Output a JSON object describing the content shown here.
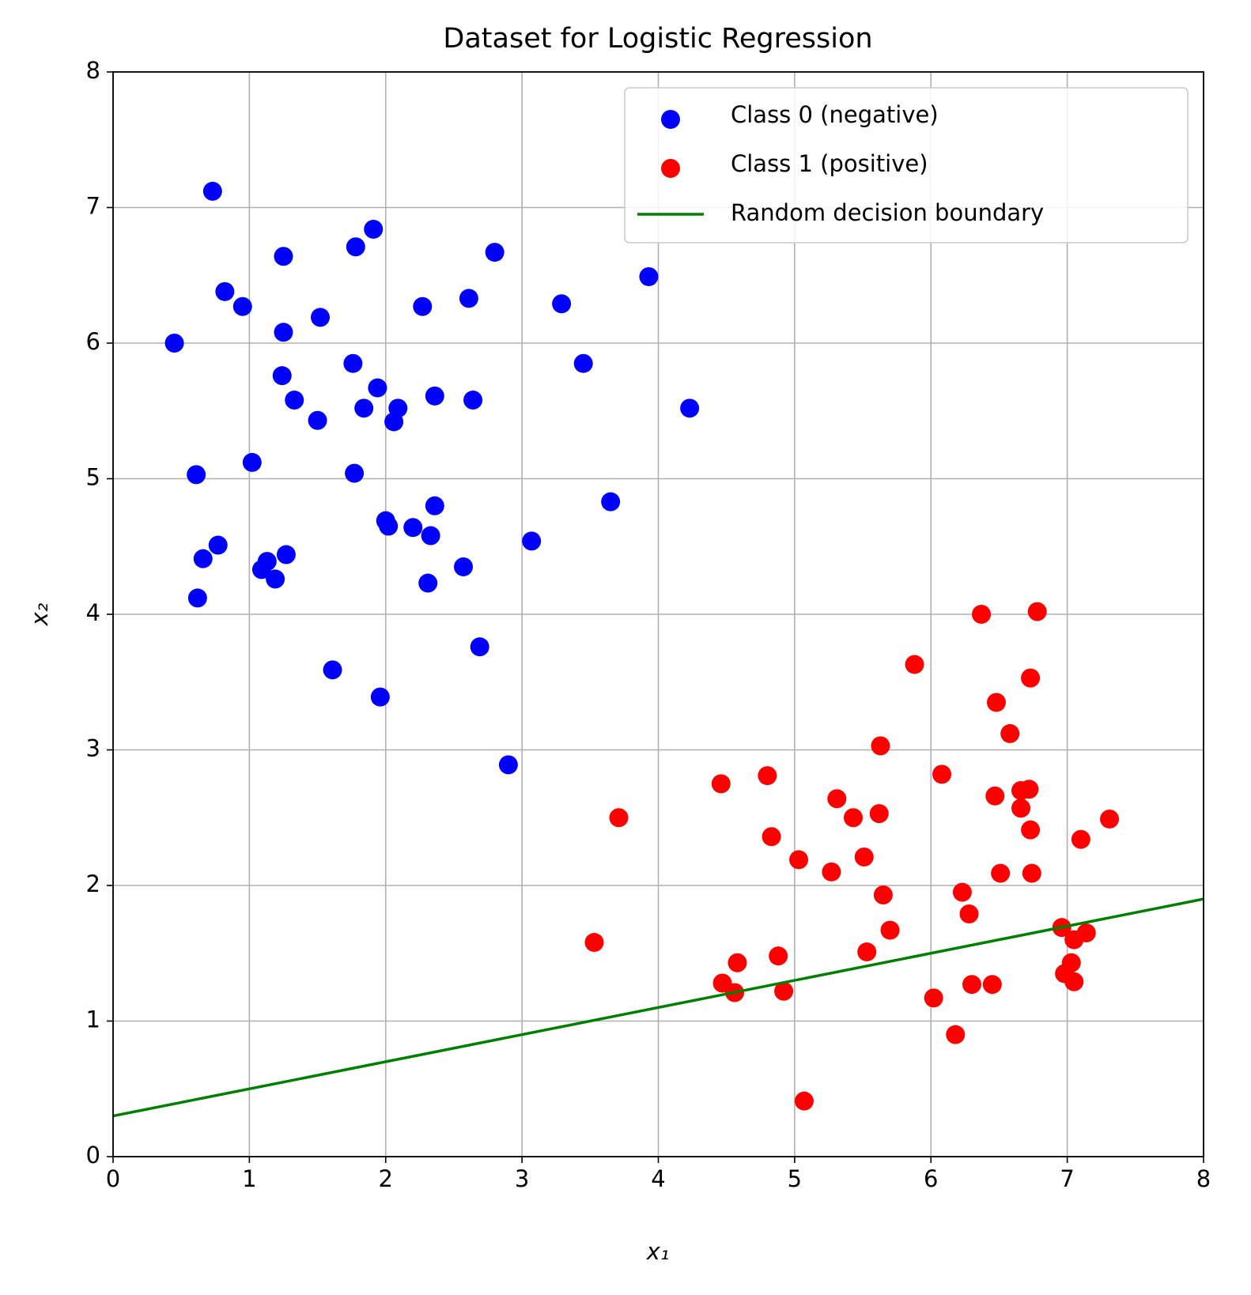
{
  "chart_data": {
    "type": "scatter",
    "title": "Dataset for Logistic Regression",
    "x_label": "x₁",
    "y_label": "x₂",
    "xlim": [
      0,
      8
    ],
    "ylim": [
      0,
      8
    ],
    "xticks": [
      0,
      1,
      2,
      3,
      4,
      5,
      6,
      7,
      8
    ],
    "yticks": [
      0,
      1,
      2,
      3,
      4,
      5,
      6,
      7,
      8
    ],
    "grid": true,
    "legend": "upper right",
    "series": [
      {
        "name": "Class 0 (negative)",
        "color": "#0000ff",
        "kind": "scatter",
        "x": [
          0.45,
          0.73,
          0.82,
          0.95,
          1.25,
          1.25,
          1.52,
          1.24,
          1.33,
          1.5,
          1.76,
          1.78,
          1.91,
          1.94,
          1.84,
          2.09,
          2.06,
          2.27,
          2.61,
          2.8,
          2.36,
          2.64,
          3.29,
          3.45,
          3.93,
          4.23,
          0.61,
          1.02,
          1.77,
          2.0,
          2.02,
          2.2,
          2.33,
          2.36,
          3.65,
          3.07,
          2.57,
          2.31,
          0.66,
          0.77,
          1.13,
          1.09,
          1.19,
          1.27,
          0.62,
          2.69,
          1.61,
          1.96,
          2.9
        ],
        "values": [
          6.0,
          7.12,
          6.38,
          6.27,
          6.64,
          6.08,
          6.19,
          5.76,
          5.58,
          5.43,
          5.85,
          6.71,
          6.84,
          5.67,
          5.52,
          5.52,
          5.42,
          6.27,
          6.33,
          6.67,
          5.61,
          5.58,
          6.29,
          5.85,
          6.49,
          5.52,
          5.03,
          5.12,
          5.04,
          4.69,
          4.65,
          4.64,
          4.58,
          4.8,
          4.83,
          4.54,
          4.35,
          4.23,
          4.41,
          4.51,
          4.39,
          4.33,
          4.26,
          4.44,
          4.12,
          3.76,
          3.59,
          3.39,
          2.89
        ]
      },
      {
        "name": "Class 1 (positive)",
        "color": "#ff0000",
        "kind": "scatter",
        "x": [
          6.37,
          6.78,
          5.88,
          6.73,
          6.48,
          6.58,
          5.63,
          6.08,
          4.8,
          4.46,
          6.66,
          6.72,
          6.47,
          5.31,
          6.66,
          5.62,
          5.43,
          3.71,
          7.31,
          6.73,
          7.1,
          4.83,
          5.03,
          5.51,
          5.27,
          6.51,
          6.74,
          6.23,
          5.65,
          6.28,
          5.7,
          3.53,
          6.96,
          7.05,
          7.14,
          5.53,
          4.58,
          4.88,
          7.03,
          6.98,
          7.05,
          4.47,
          4.56,
          4.92,
          6.3,
          6.45,
          6.02,
          6.18,
          5.07
        ],
        "values": [
          4.0,
          4.02,
          3.63,
          3.53,
          3.35,
          3.12,
          3.03,
          2.82,
          2.81,
          2.75,
          2.7,
          2.71,
          2.66,
          2.64,
          2.57,
          2.53,
          2.5,
          2.5,
          2.49,
          2.41,
          2.34,
          2.36,
          2.19,
          2.21,
          2.1,
          2.09,
          2.09,
          1.95,
          1.93,
          1.79,
          1.67,
          1.58,
          1.69,
          1.6,
          1.65,
          1.51,
          1.43,
          1.48,
          1.43,
          1.35,
          1.29,
          1.28,
          1.21,
          1.22,
          1.27,
          1.27,
          1.17,
          0.9,
          0.41
        ]
      },
      {
        "name": "Random decision boundary",
        "color": "#008000",
        "kind": "line",
        "x": [
          0,
          8
        ],
        "values": [
          0.3,
          1.9
        ]
      }
    ]
  }
}
